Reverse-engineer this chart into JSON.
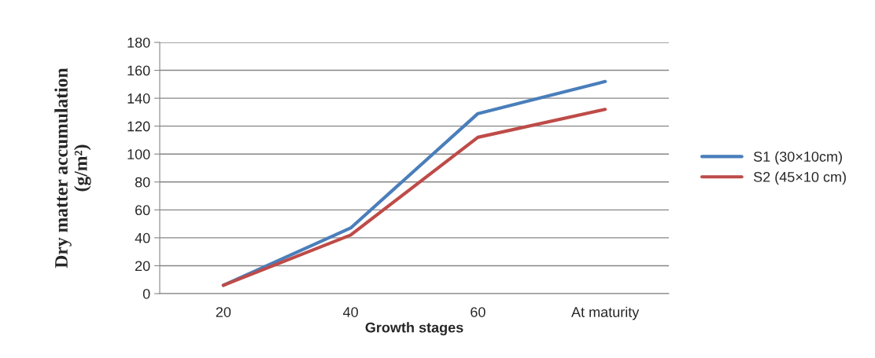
{
  "chart_data": {
    "type": "line",
    "xlabel": "Growth stages",
    "ylabel": "Dry matter accumulation\n(g/m²)",
    "categories": [
      "20",
      "40",
      "60",
      "At maturity"
    ],
    "series": [
      {
        "name": "S1 (30×10cm)",
        "color": "#4a7ebb",
        "values": [
          6,
          47,
          129,
          152
        ]
      },
      {
        "name": "S2 (45×10 cm)",
        "color": "#be4b48",
        "values": [
          6,
          42,
          112,
          132
        ]
      }
    ],
    "ylim": [
      0,
      180
    ],
    "yticks": [
      0,
      20,
      40,
      60,
      80,
      100,
      120,
      140,
      160,
      180
    ],
    "grid": "y",
    "legend": "right",
    "marker": "none",
    "line_style": "solid"
  }
}
